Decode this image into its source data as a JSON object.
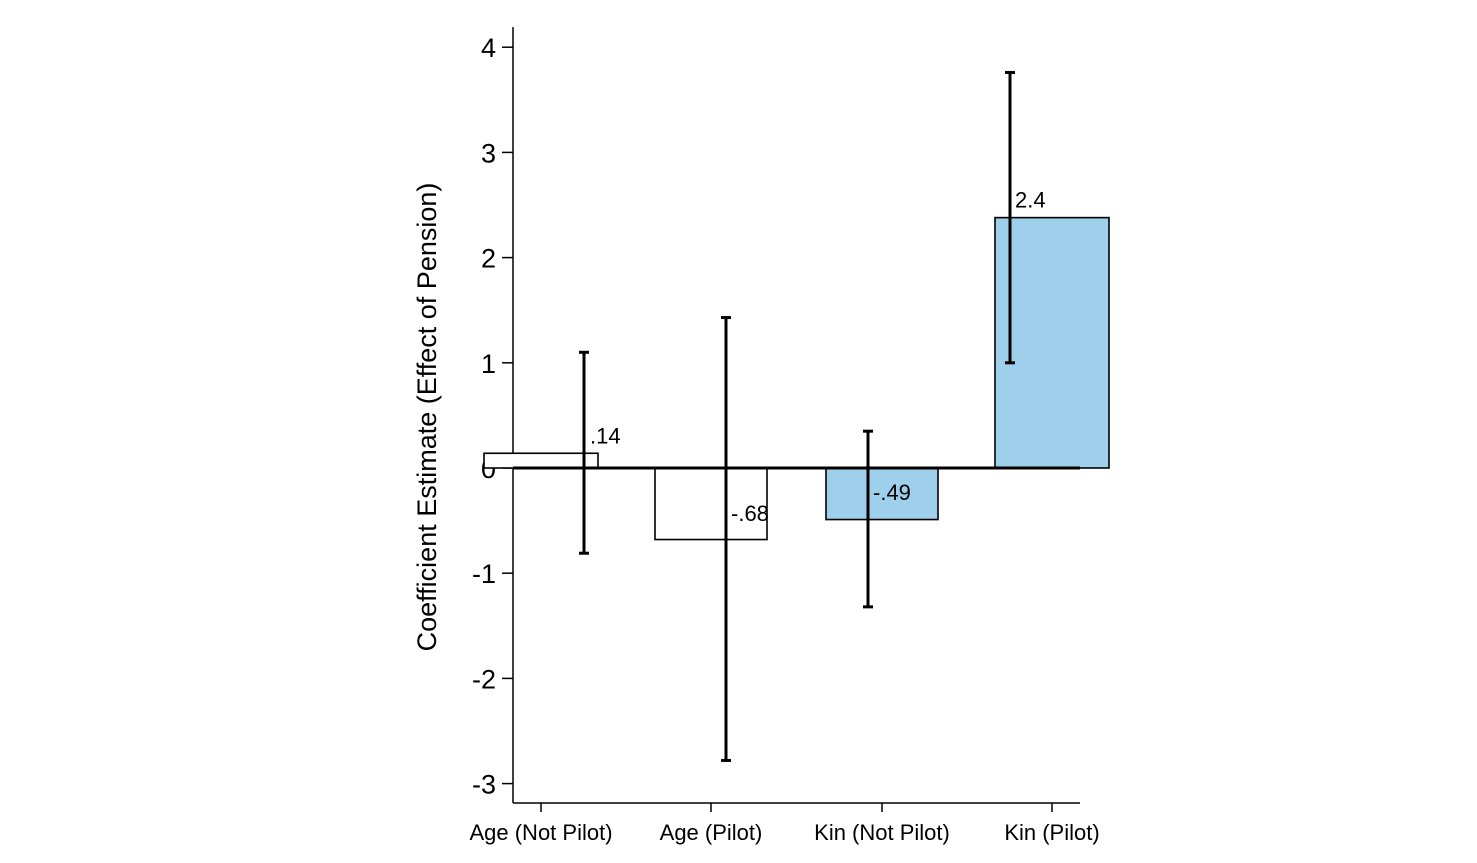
{
  "chart_data": {
    "type": "bar",
    "title": "",
    "xlabel": "",
    "ylabel": "Coefficient Estimate (Effect of Pension)",
    "ylim": [
      -3.2,
      4.2
    ],
    "yticks": [
      -3,
      -2,
      -1,
      0,
      1,
      2,
      3,
      4
    ],
    "grid": false,
    "categories": [
      "Age (Not Pilot)",
      "Age (Pilot)",
      "Kin (Not Pilot)",
      "Kin (Pilot)"
    ],
    "values": [
      0.14,
      -0.68,
      -0.49,
      2.38
    ],
    "value_labels": [
      ".14",
      "-.68",
      "-.49",
      "2.4"
    ],
    "ci_low": [
      -0.81,
      -2.78,
      -1.32,
      1.0
    ],
    "ci_high": [
      1.1,
      1.43,
      0.35,
      3.76
    ],
    "bar_colors": [
      "#ffffff",
      "#ffffff",
      "#9ecfeb",
      "#9ecfeb"
    ],
    "bar_edge_color": "#000000"
  }
}
